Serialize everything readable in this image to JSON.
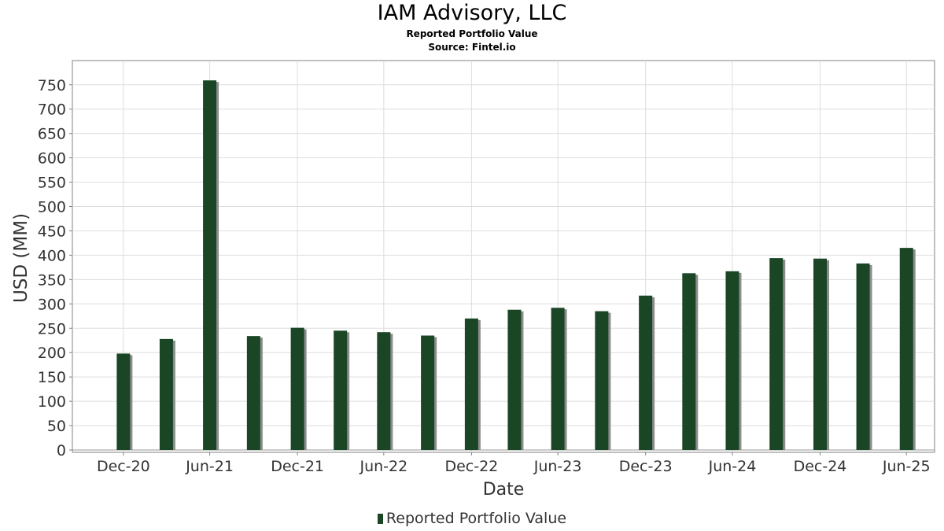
{
  "chart_data": {
    "type": "bar",
    "title": "IAM Advisory, LLC",
    "subtitle_lines": [
      "Reported Portfolio Value",
      "Source: Fintel.io"
    ],
    "xlabel": "Date",
    "ylabel": "USD (MM)",
    "ylim": [
      0,
      780
    ],
    "yticks": [
      0,
      50,
      100,
      150,
      200,
      250,
      300,
      350,
      400,
      450,
      500,
      550,
      600,
      650,
      700,
      750
    ],
    "x_range": [
      "2020-09-15",
      "2025-08-28"
    ],
    "xticks": [
      {
        "date": "2020-12-31",
        "label": "Dec-20"
      },
      {
        "date": "2021-06-30",
        "label": "Jun-21"
      },
      {
        "date": "2021-12-31",
        "label": "Dec-21"
      },
      {
        "date": "2022-06-30",
        "label": "Jun-22"
      },
      {
        "date": "2022-12-31",
        "label": "Dec-22"
      },
      {
        "date": "2023-06-30",
        "label": "Jun-23"
      },
      {
        "date": "2023-12-31",
        "label": "Dec-23"
      },
      {
        "date": "2024-06-30",
        "label": "Jun-24"
      },
      {
        "date": "2024-12-31",
        "label": "Dec-24"
      },
      {
        "date": "2025-06-30",
        "label": "Jun-25"
      }
    ],
    "grid": true,
    "legend_position": "bottom-center",
    "series": [
      {
        "name": "Reported Portfolio Value",
        "color": "#1a4625",
        "points": [
          {
            "date": "2020-12-31",
            "value": 198
          },
          {
            "date": "2021-03-31",
            "value": 228
          },
          {
            "date": "2021-06-30",
            "value": 759
          },
          {
            "date": "2021-09-30",
            "value": 234
          },
          {
            "date": "2021-12-31",
            "value": 251
          },
          {
            "date": "2022-03-31",
            "value": 245
          },
          {
            "date": "2022-06-30",
            "value": 242
          },
          {
            "date": "2022-09-30",
            "value": 235
          },
          {
            "date": "2022-12-31",
            "value": 270
          },
          {
            "date": "2023-03-31",
            "value": 288
          },
          {
            "date": "2023-06-30",
            "value": 292
          },
          {
            "date": "2023-09-30",
            "value": 285
          },
          {
            "date": "2023-12-31",
            "value": 317
          },
          {
            "date": "2024-03-31",
            "value": 363
          },
          {
            "date": "2024-06-30",
            "value": 367
          },
          {
            "date": "2024-09-30",
            "value": 394
          },
          {
            "date": "2024-12-31",
            "value": 393
          },
          {
            "date": "2025-03-31",
            "value": 383
          },
          {
            "date": "2025-06-30",
            "value": 415
          }
        ]
      }
    ]
  }
}
